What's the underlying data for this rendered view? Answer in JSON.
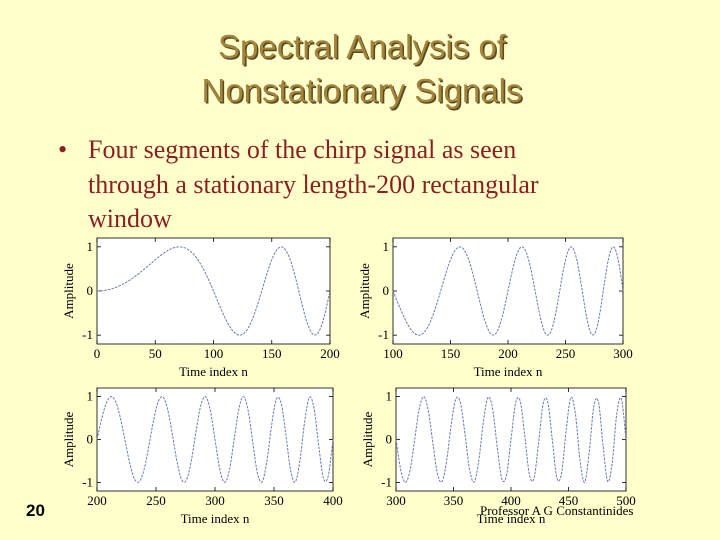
{
  "slide": {
    "title_lines": [
      "Spectral Analysis of",
      "Nonstationary Signals"
    ],
    "bullet_marker": "•",
    "bullet_lines": [
      "Four segments of the chirp signal as seen",
      "through a stationary length-200 rectangular",
      "window"
    ],
    "page_number": "20",
    "footer": "Professor A G Constantinides"
  },
  "chart_data": [
    {
      "type": "line",
      "ylabel": "Amplitude",
      "xlabel": "Time index n",
      "color": "#6a78b8",
      "x": [
        0,
        5,
        10,
        15,
        20,
        25,
        30,
        35,
        40,
        45,
        50,
        55,
        60,
        65,
        70,
        75,
        80,
        85,
        90,
        95,
        100,
        105,
        110,
        115,
        120,
        125,
        130,
        135,
        140,
        145,
        150,
        155,
        160,
        165,
        170,
        175,
        180,
        185,
        190,
        195,
        200
      ],
      "values": [
        0,
        0.008,
        0.031,
        0.071,
        0.125,
        0.195,
        0.279,
        0.375,
        0.482,
        0.594,
        0.707,
        0.814,
        0.905,
        0.97,
        1,
        0.981,
        0.905,
        0.766,
        0.562,
        0.301,
        0,
        -0.317,
        -0.613,
        -0.849,
        -0.982,
        -0.981,
        -0.827,
        -0.529,
        -0.125,
        0.317,
        0.707,
        0.953,
        0.982,
        0.766,
        0.339,
        -0.195,
        -0.685,
        -0.97,
        -0.941,
        -0.581,
        0
      ],
      "xlim": [
        0,
        200
      ],
      "xticks": [
        0,
        50,
        100,
        150,
        200
      ],
      "ylim": [
        -1.2,
        1.2
      ],
      "yticks": [
        -1,
        0,
        1
      ]
    },
    {
      "type": "line",
      "ylabel": "Amplitude",
      "xlabel": "Time index n",
      "color": "#6a78b8",
      "x": [
        100,
        105,
        110,
        115,
        120,
        125,
        130,
        135,
        140,
        145,
        150,
        155,
        160,
        165,
        170,
        175,
        180,
        185,
        190,
        195,
        200,
        204,
        208,
        212,
        216,
        220,
        224,
        228,
        232,
        236,
        240,
        244,
        248,
        252,
        256,
        260,
        264,
        268,
        272,
        276,
        280,
        284,
        288,
        292,
        296,
        300
      ],
      "values": [
        0,
        -0.317,
        -0.613,
        -0.849,
        -0.982,
        -0.981,
        -0.827,
        -0.529,
        -0.125,
        0.317,
        0.707,
        0.953,
        0.982,
        0.766,
        0.339,
        -0.195,
        -0.685,
        -0.97,
        -0.941,
        -0.581,
        0,
        0.486,
        0.855,
        1,
        0.868,
        0.482,
        -0.055,
        -0.584,
        -0.933,
        -0.976,
        -0.685,
        -0.145,
        0.455,
        0.892,
        0.986,
        0.685,
        0.095,
        -0.542,
        -0.95,
        -0.933,
        -0.482,
        0.205,
        0.799,
        0.997,
        0.681,
        0
      ],
      "xlim": [
        100,
        300
      ],
      "xticks": [
        100,
        150,
        200,
        250,
        300
      ],
      "ylim": [
        -1.2,
        1.2
      ],
      "yticks": [
        -1,
        0,
        1
      ]
    },
    {
      "type": "line",
      "ylabel": "Amplitude",
      "xlabel": "Time index n",
      "color": "#6a78b8",
      "x": [
        200,
        204,
        208,
        212,
        216,
        220,
        224,
        228,
        232,
        236,
        240,
        244,
        248,
        252,
        256,
        260,
        264,
        268,
        272,
        276,
        280,
        284,
        288,
        292,
        296,
        300,
        304,
        308,
        312,
        316,
        320,
        324,
        328,
        332,
        336,
        340,
        344,
        348,
        352,
        356,
        360,
        364,
        368,
        372,
        376,
        380,
        384,
        388,
        392,
        396,
        400
      ],
      "values": [
        0,
        0.486,
        0.855,
        1,
        0.868,
        0.482,
        -0.055,
        -0.584,
        -0.933,
        -0.976,
        -0.685,
        -0.145,
        0.455,
        0.892,
        0.986,
        0.685,
        0.095,
        -0.542,
        -0.95,
        -0.933,
        -0.482,
        0.205,
        0.799,
        0.997,
        0.681,
        0,
        -0.688,
        -0.999,
        -0.741,
        -0.045,
        0.685,
        1,
        0.688,
        -0.07,
        -0.789,
        -0.982,
        -0.499,
        0.34,
        0.941,
        0.855,
        0.125,
        -0.706,
        -0.991,
        -0.486,
        0.419,
        0.982,
        0.717,
        -0.17,
        -0.913,
        -0.841,
        0
      ],
      "xlim": [
        200,
        400
      ],
      "xticks": [
        200,
        250,
        300,
        350,
        400
      ],
      "ylim": [
        -1.2,
        1.2
      ],
      "yticks": [
        -1,
        0,
        1
      ]
    },
    {
      "type": "line",
      "ylabel": "Amplitude",
      "xlabel": "Time index n",
      "color": "#6a78b8",
      "x": [
        300,
        304,
        308,
        312,
        316,
        320,
        324,
        328,
        332,
        336,
        340,
        344,
        348,
        352,
        356,
        360,
        364,
        368,
        372,
        376,
        380,
        384,
        388,
        392,
        396,
        400,
        404,
        408,
        412,
        416,
        420,
        424,
        428,
        432,
        436,
        440,
        444,
        448,
        452,
        456,
        460,
        464,
        468,
        472,
        476,
        480,
        484,
        488,
        492,
        496,
        500
      ],
      "values": [
        0,
        -0.688,
        -0.999,
        -0.741,
        -0.045,
        0.685,
        1,
        0.688,
        -0.07,
        -0.789,
        -0.982,
        -0.499,
        0.34,
        0.941,
        0.855,
        0.125,
        -0.706,
        -0.991,
        -0.486,
        0.419,
        0.982,
        0.717,
        -0.17,
        -0.913,
        -0.841,
        0,
        0.847,
        0.896,
        0.08,
        -0.819,
        -0.905,
        -0.07,
        0.841,
        0.872,
        -0.03,
        -0.905,
        -0.783,
        0.219,
        0.976,
        0.604,
        -0.482,
        -0.996,
        -0.302,
        0.767,
        0.88,
        -0.125,
        -0.973,
        -0.551,
        0.604,
        0.95,
        0
      ],
      "xlim": [
        300,
        500
      ],
      "xticks": [
        300,
        350,
        400,
        450,
        500
      ],
      "ylim": [
        -1.2,
        1.2
      ],
      "yticks": [
        -1,
        0,
        1
      ]
    }
  ]
}
